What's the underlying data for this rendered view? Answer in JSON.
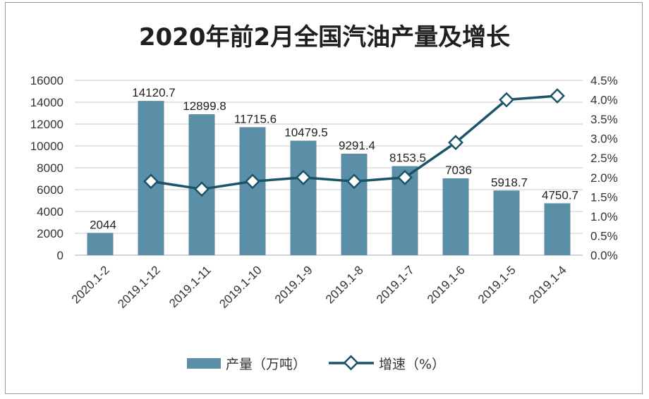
{
  "chart_data": {
    "type": "bar",
    "title": "2020年前2月全国汽油产量及增长",
    "categories": [
      "2020.1-2",
      "2019.1-12",
      "2019.1-11",
      "2019.1-10",
      "2019.1-9",
      "2019.1-8",
      "2019.1-7",
      "2019.1-6",
      "2019.1-5",
      "2019.1-4"
    ],
    "series": [
      {
        "name": "产量（万吨）",
        "kind": "bar",
        "axis": "left",
        "color": "#5b8fa8",
        "values": [
          2044,
          14120.7,
          12899.8,
          11715.6,
          10479.5,
          9291.4,
          8153.5,
          7036,
          5918.7,
          4750.7
        ],
        "labels": [
          "2044",
          "14120.7",
          "12899.8",
          "11715.6",
          "10479.5",
          "9291.4",
          "8153.5",
          "7036",
          "5918.7",
          "4750.7"
        ]
      },
      {
        "name": "增速（%）",
        "kind": "line",
        "axis": "right",
        "color": "#1a5468",
        "values": [
          null,
          1.9,
          1.7,
          1.9,
          2.0,
          1.9,
          2.0,
          2.9,
          4.0,
          4.1
        ]
      }
    ],
    "y_left": {
      "min": 0,
      "max": 16000,
      "ticks": [
        "0",
        "2000",
        "4000",
        "6000",
        "8000",
        "10000",
        "12000",
        "14000",
        "16000"
      ]
    },
    "y_right": {
      "min": 0,
      "max": 4.5,
      "ticks": [
        "0.0%",
        "0.5%",
        "1.0%",
        "1.5%",
        "2.0%",
        "2.5%",
        "3.0%",
        "3.5%",
        "4.0%",
        "4.5%"
      ]
    },
    "grid": true,
    "legend_position": "bottom"
  }
}
